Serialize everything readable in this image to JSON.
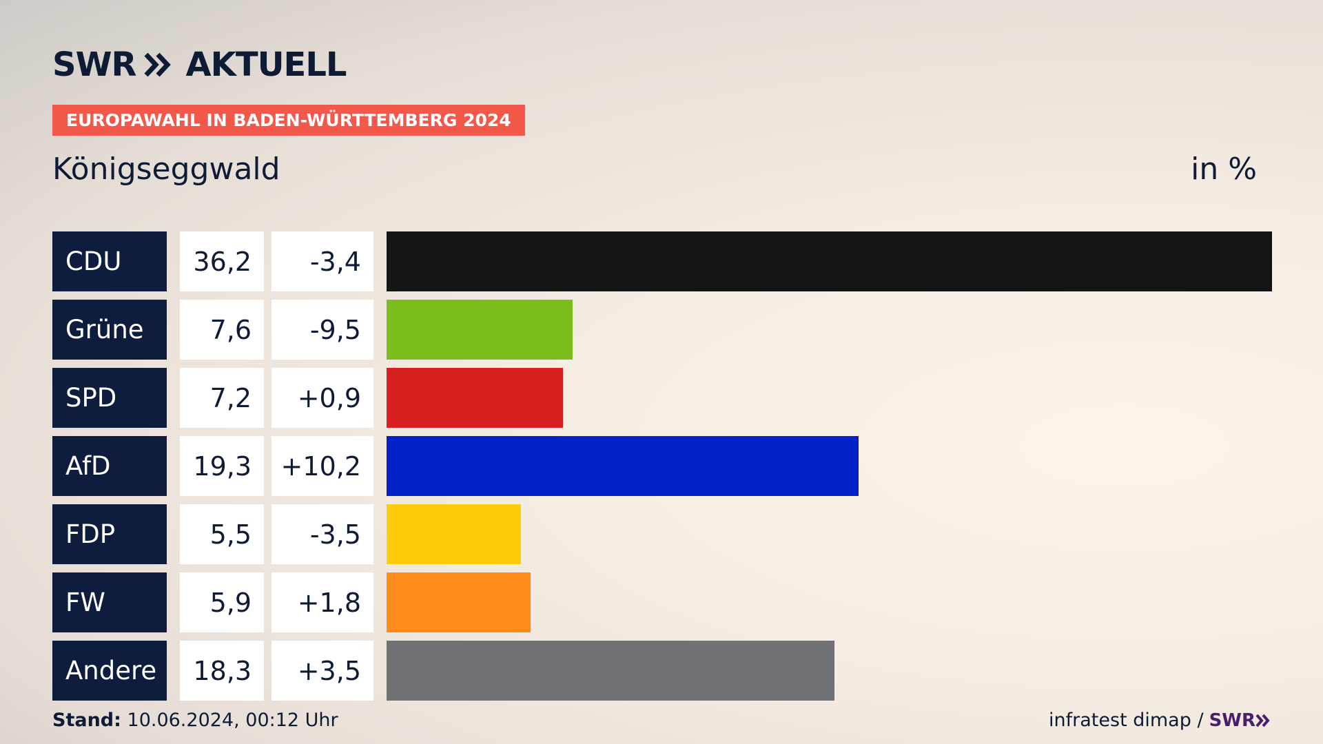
{
  "logo": {
    "text_left": "SWR",
    "text_right": "AKTUELL"
  },
  "badge": "EUROPAWAHL IN BADEN-WÜRTTEMBERG 2024",
  "region": "Königseggwald",
  "unit": "in %",
  "footer": {
    "stand_label": "Stand:",
    "stand_value": "10.06.2024, 00:12 Uhr",
    "source": "infratest dimap /",
    "source_logo": "SWR"
  },
  "chart_data": {
    "type": "bar",
    "categories": [
      "CDU",
      "Grüne",
      "SPD",
      "AfD",
      "FDP",
      "FW",
      "Andere"
    ],
    "values": [
      36.2,
      7.6,
      7.2,
      19.3,
      5.5,
      5.9,
      18.3
    ],
    "values_label": [
      "36,2",
      "7,6",
      "7,2",
      "19,3",
      "5,5",
      "5,9",
      "18,3"
    ],
    "diffs_label": [
      "-3,4",
      "-9,5",
      "+0,9",
      "+10,2",
      "-3,5",
      "+1,8",
      "+3,5"
    ],
    "colors": [
      "#141414",
      "#7bbd1d",
      "#d81f20",
      "#0022c6",
      "#ffcc0b",
      "#ff8c19",
      "#707174"
    ],
    "xlim": [
      0,
      36.2
    ]
  }
}
